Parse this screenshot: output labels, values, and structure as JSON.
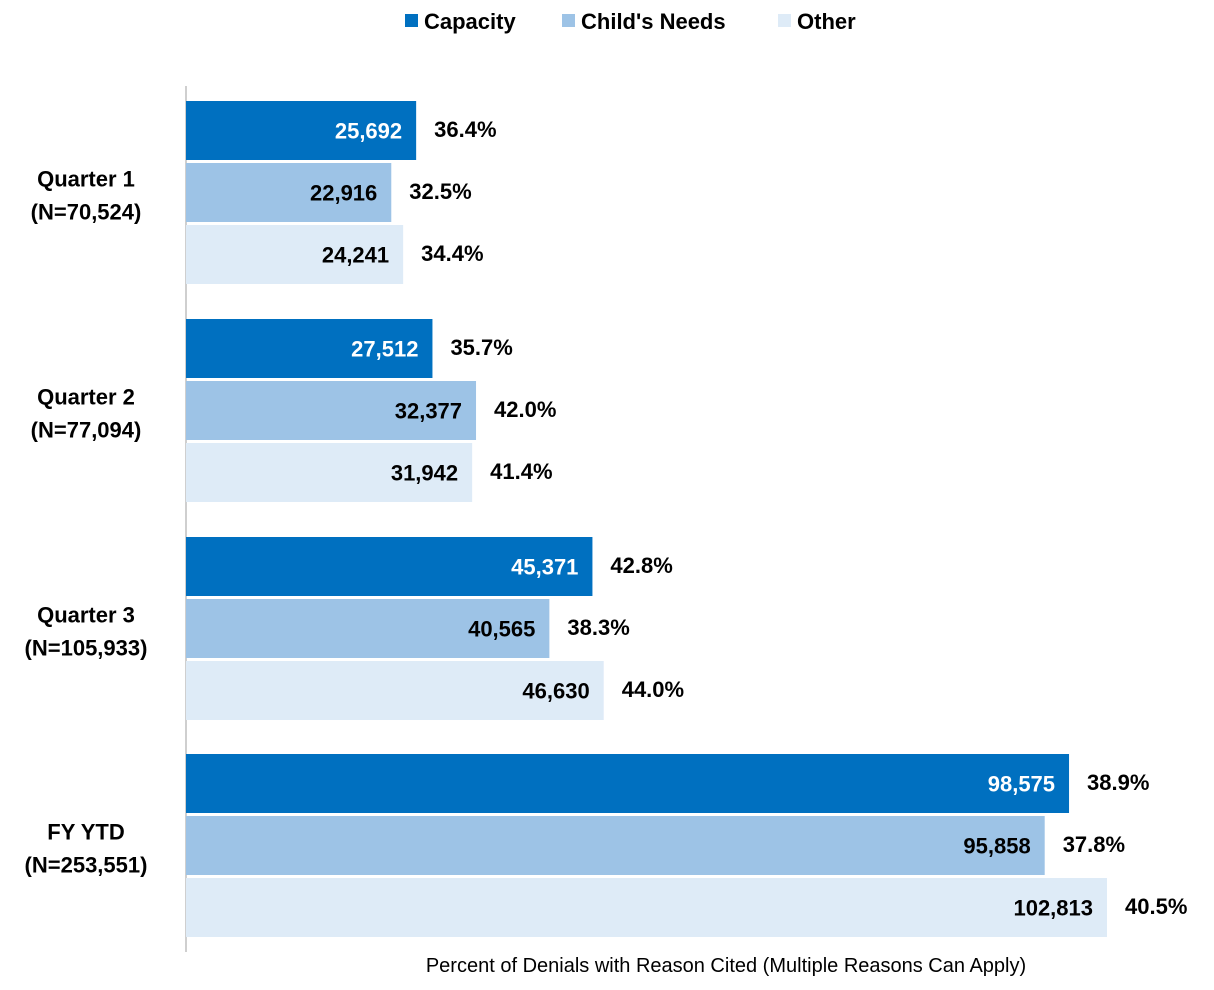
{
  "chart_data": {
    "type": "bar",
    "orientation": "horizontal",
    "categories": [
      [
        "Quarter 1",
        "(N=70,524)"
      ],
      [
        "Quarter 2",
        "(N=77,094)"
      ],
      [
        "Quarter 3",
        "(N=105,933)"
      ],
      [
        "FY YTD",
        "(N=253,551)"
      ]
    ],
    "series": [
      {
        "name": "Capacity",
        "color": "#0070C0",
        "values": [
          25692,
          27512,
          45371,
          98575
        ],
        "value_labels": [
          "25,692",
          "27,512",
          "45,371",
          "98,575"
        ],
        "percent_labels": [
          "36.4%",
          "35.7%",
          "42.8%",
          "38.9%"
        ]
      },
      {
        "name": "Child's Needs",
        "color": "#9DC3E6",
        "values": [
          22916,
          32377,
          40565,
          95858
        ],
        "value_labels": [
          "22,916",
          "32,377",
          "40,565",
          "95,858"
        ],
        "percent_labels": [
          "32.5%",
          "42.0%",
          "38.3%",
          "37.8%"
        ]
      },
      {
        "name": "Other",
        "color": "#DEEBF7",
        "values": [
          24241,
          31942,
          46630,
          102813
        ],
        "value_labels": [
          "24,241",
          "31,942",
          "46,630",
          "102,813"
        ],
        "percent_labels": [
          "34.4%",
          "41.4%",
          "44.0%",
          "40.5%"
        ]
      }
    ],
    "xlabel": "Percent of Denials with Reason Cited (Multiple Reasons Can Apply)",
    "xlim": [
      0,
      102813
    ],
    "grid": false,
    "legend_position": "top-center"
  }
}
